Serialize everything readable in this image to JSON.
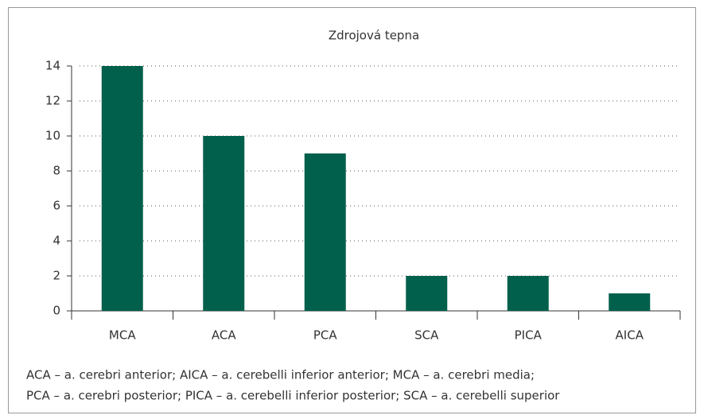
{
  "chart_data": {
    "type": "bar",
    "title": "Zdrojová tepna",
    "categories": [
      "MCA",
      "ACA",
      "PCA",
      "SCA",
      "PICA",
      "AICA"
    ],
    "values": [
      14,
      10,
      9,
      2,
      2,
      1
    ],
    "color": "#00604b",
    "ylim": [
      0,
      14
    ],
    "yticks": [
      0,
      2,
      4,
      6,
      8,
      10,
      12,
      14
    ],
    "grid": true,
    "footnote": [
      "ACA – a. cerebri anterior; AICA – a. cerebelli inferior anterior; MCA – a. cerebri media;",
      "PCA – a. cerebri posterior; PICA – a. cerebelli inferior posterior; SCA – a. cerebelli superior"
    ]
  }
}
